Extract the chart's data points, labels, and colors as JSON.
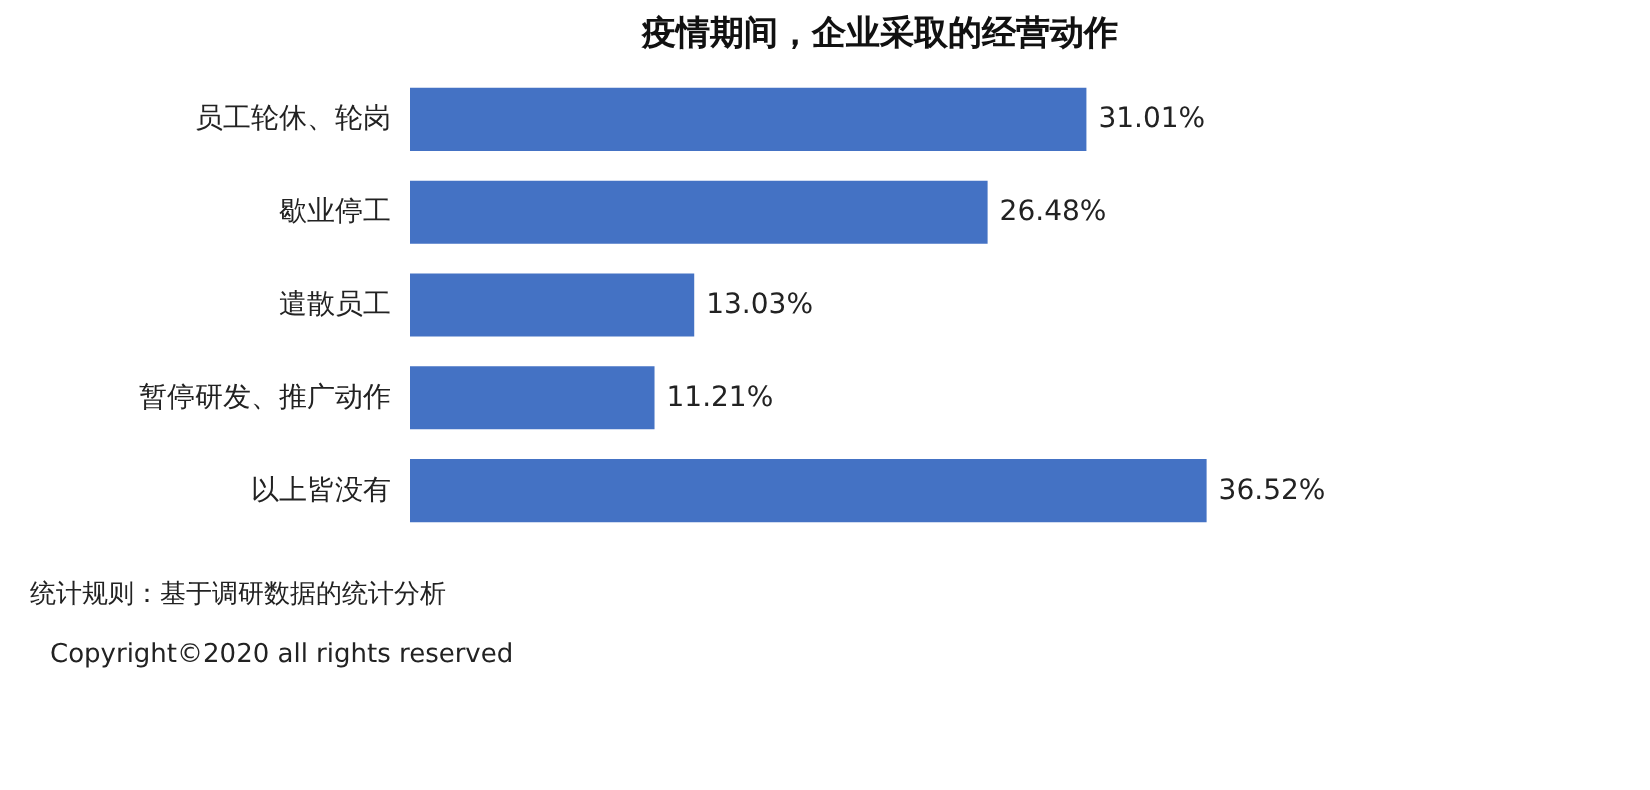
{
  "chart_data": {
    "type": "bar",
    "orientation": "horizontal",
    "title": "疫情期间，企业采取的经营动作",
    "categories": [
      "员工轮休、轮岗",
      "歇业停工",
      "遣散员工",
      "暂停研发、推广动作",
      "以上皆没有"
    ],
    "values": [
      31.01,
      26.48,
      13.03,
      11.21,
      36.52
    ],
    "value_labels": [
      "31.01%",
      "26.48%",
      "13.03%",
      "11.21%",
      "36.52%"
    ],
    "color": "#4472c4",
    "annotations": [
      "统计规则：基于调研数据的统计分析",
      "Copyright©2020 all rights reserved"
    ]
  }
}
